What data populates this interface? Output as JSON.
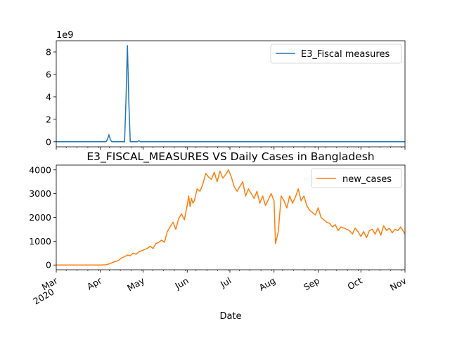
{
  "chart_data": [
    {
      "type": "line",
      "title": "",
      "xlabel": "",
      "ylabel": "",
      "offset_label": "1e9",
      "ylim": [
        -0.45,
        9.0
      ],
      "yticks": [
        0,
        2,
        4,
        6,
        8
      ],
      "xlim": [
        "2020-03-01",
        "2020-11-01"
      ],
      "grid": false,
      "legend_position": "top-right",
      "series": [
        {
          "name": "E3_Fiscal measures",
          "color": "#1f77b4",
          "x": [
            "2020-03-01",
            "2020-04-05",
            "2020-04-06",
            "2020-04-07",
            "2020-04-08",
            "2020-04-09",
            "2020-04-18",
            "2020-04-19",
            "2020-04-20",
            "2020-04-21",
            "2020-04-22",
            "2020-04-27",
            "2020-04-28",
            "2020-04-29",
            "2020-11-01"
          ],
          "values": [
            0,
            0,
            0.22,
            0.6,
            0.2,
            0,
            0,
            3.8,
            8.6,
            3.5,
            0,
            0,
            0.1,
            0,
            0
          ]
        }
      ]
    },
    {
      "type": "line",
      "title": "E3_FISCAL_MEASURES VS Daily Cases in Bangladesh",
      "xlabel": "Date",
      "ylabel": "",
      "ylim": [
        -200,
        4200
      ],
      "yticks": [
        0,
        1000,
        2000,
        3000,
        4000
      ],
      "xlim": [
        "2020-03-01",
        "2020-11-01"
      ],
      "grid": false,
      "legend_position": "top-right",
      "x_tick_labels": [
        {
          "date": "2020-03-01",
          "label": "Mar",
          "sub": "2020"
        },
        {
          "date": "2020-04-01",
          "label": "Apr"
        },
        {
          "date": "2020-05-01",
          "label": "May"
        },
        {
          "date": "2020-06-01",
          "label": "Jun"
        },
        {
          "date": "2020-07-01",
          "label": "Jul"
        },
        {
          "date": "2020-08-01",
          "label": "Aug"
        },
        {
          "date": "2020-09-01",
          "label": "Sep"
        },
        {
          "date": "2020-10-01",
          "label": "Oct"
        },
        {
          "date": "2020-11-01",
          "label": "Nov"
        }
      ],
      "series": [
        {
          "name": "new_cases",
          "color": "#ff7f0e",
          "x": [
            "2020-03-01",
            "2020-03-20",
            "2020-04-01",
            "2020-04-05",
            "2020-04-08",
            "2020-04-10",
            "2020-04-12",
            "2020-04-14",
            "2020-04-16",
            "2020-04-18",
            "2020-04-20",
            "2020-04-22",
            "2020-04-24",
            "2020-04-26",
            "2020-04-28",
            "2020-04-30",
            "2020-05-02",
            "2020-05-04",
            "2020-05-06",
            "2020-05-08",
            "2020-05-10",
            "2020-05-12",
            "2020-05-14",
            "2020-05-16",
            "2020-05-18",
            "2020-05-20",
            "2020-05-22",
            "2020-05-24",
            "2020-05-26",
            "2020-05-28",
            "2020-05-30",
            "2020-06-01",
            "2020-06-02",
            "2020-06-03",
            "2020-06-04",
            "2020-06-05",
            "2020-06-06",
            "2020-06-08",
            "2020-06-10",
            "2020-06-12",
            "2020-06-14",
            "2020-06-16",
            "2020-06-18",
            "2020-06-20",
            "2020-06-22",
            "2020-06-24",
            "2020-06-26",
            "2020-06-28",
            "2020-06-30",
            "2020-07-02",
            "2020-07-04",
            "2020-07-06",
            "2020-07-08",
            "2020-07-10",
            "2020-07-12",
            "2020-07-14",
            "2020-07-16",
            "2020-07-18",
            "2020-07-20",
            "2020-07-22",
            "2020-07-24",
            "2020-07-26",
            "2020-07-28",
            "2020-07-30",
            "2020-08-01",
            "2020-08-02",
            "2020-08-04",
            "2020-08-06",
            "2020-08-08",
            "2020-08-10",
            "2020-08-12",
            "2020-08-14",
            "2020-08-16",
            "2020-08-18",
            "2020-08-20",
            "2020-08-22",
            "2020-08-24",
            "2020-08-26",
            "2020-08-28",
            "2020-08-30",
            "2020-09-01",
            "2020-09-03",
            "2020-09-05",
            "2020-09-07",
            "2020-09-09",
            "2020-09-11",
            "2020-09-13",
            "2020-09-15",
            "2020-09-17",
            "2020-09-19",
            "2020-09-21",
            "2020-09-23",
            "2020-09-25",
            "2020-09-27",
            "2020-09-29",
            "2020-10-01",
            "2020-10-03",
            "2020-10-05",
            "2020-10-07",
            "2020-10-09",
            "2020-10-11",
            "2020-10-13",
            "2020-10-15",
            "2020-10-17",
            "2020-10-19",
            "2020-10-21",
            "2020-10-23",
            "2020-10-25",
            "2020-10-27",
            "2020-10-29",
            "2020-10-31",
            "2020-11-01"
          ],
          "values": [
            0,
            0,
            0,
            10,
            60,
            120,
            150,
            200,
            300,
            350,
            420,
            390,
            500,
            450,
            550,
            600,
            650,
            700,
            790,
            690,
            900,
            950,
            1050,
            950,
            1400,
            1600,
            1800,
            1500,
            1950,
            2150,
            1900,
            2500,
            2900,
            2450,
            2800,
            2600,
            2700,
            3200,
            3100,
            3400,
            3850,
            3700,
            3600,
            3900,
            3500,
            3950,
            3650,
            3800,
            4000,
            3700,
            3300,
            3100,
            3300,
            3500,
            2900,
            3200,
            3000,
            2800,
            3100,
            2600,
            2900,
            2500,
            2750,
            3000,
            2700,
            900,
            1400,
            2900,
            2700,
            2400,
            2900,
            2600,
            2850,
            3200,
            2700,
            2900,
            2500,
            2300,
            2200,
            2100,
            2400,
            2000,
            1900,
            1800,
            1750,
            1600,
            1700,
            1450,
            1600,
            1550,
            1500,
            1450,
            1300,
            1550,
            1400,
            1200,
            1400,
            1150,
            1450,
            1500,
            1300,
            1550,
            1250,
            1650,
            1450,
            1550,
            1350,
            1500,
            1450,
            1600,
            1400,
            1300
          ]
        }
      ]
    }
  ]
}
